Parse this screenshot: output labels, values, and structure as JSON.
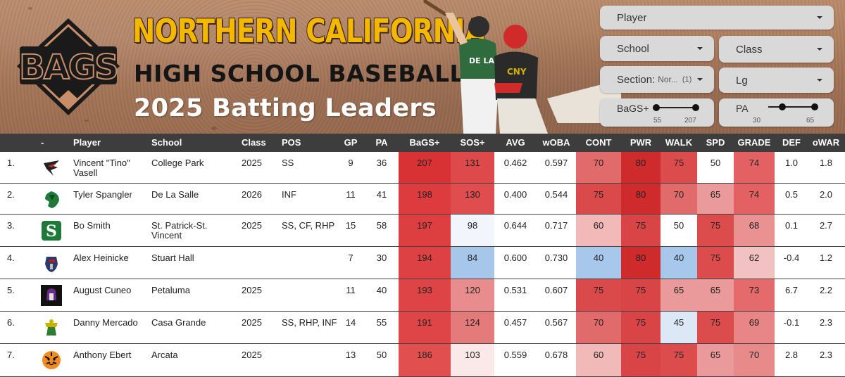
{
  "header": {
    "title_line1": "NORTHERN CALIFORNIA",
    "title_line2": "HIGH SCHOOL BASEBALL",
    "title_line3": "2025 Batting Leaders",
    "logo_text": "BAGS",
    "jersey_text_1": "DE LA SALLE",
    "jersey_text_2": "CNY"
  },
  "filters": {
    "player": {
      "label": "Player"
    },
    "school": {
      "label": "School"
    },
    "class": {
      "label": "Class"
    },
    "section": {
      "label": "Section:",
      "value": "Nor...",
      "count": "(1)"
    },
    "league": {
      "label": "Lg"
    },
    "bags_slider": {
      "label": "BaGS+",
      "min": "55",
      "max": "207",
      "low": 55,
      "high": 207
    },
    "pa_slider": {
      "label": "PA",
      "min": "30",
      "max": "65",
      "low": 30,
      "high": 65
    }
  },
  "table": {
    "columns": [
      "-",
      "Player",
      "School",
      "Class",
      "POS",
      "GP",
      "PA",
      "BaGS+",
      "SOS+",
      "AVG",
      "wOBA",
      "CONT",
      "PWR",
      "WALK",
      "SPD",
      "GRADE",
      "DEF",
      "oWAR"
    ],
    "rows": [
      {
        "rank": "1.",
        "player": "Vincent \"Tino\" Vasell",
        "school": "College Park",
        "class": "2025",
        "pos": "SS",
        "gp": "9",
        "pa": "36",
        "bags": "207",
        "sos": "131",
        "avg": "0.462",
        "woba": "0.597",
        "cont": "70",
        "pwr": "80",
        "walk": "75",
        "spd": "50",
        "grade": "74",
        "def": "1.0",
        "owar": "1.8",
        "logo": "falcon-logo"
      },
      {
        "rank": "2.",
        "player": "Tyler Spangler",
        "school": "De La Salle",
        "class": "2026",
        "pos": "INF",
        "gp": "11",
        "pa": "41",
        "bags": "198",
        "sos": "130",
        "avg": "0.400",
        "woba": "0.544",
        "cont": "75",
        "pwr": "80",
        "walk": "70",
        "spd": "65",
        "grade": "74",
        "def": "0.5",
        "owar": "2.0",
        "logo": "spartan-logo"
      },
      {
        "rank": "3.",
        "player": "Bo Smith",
        "school": "St. Patrick-St. Vincent",
        "class": "2025",
        "pos": "SS, CF, RHP",
        "gp": "15",
        "pa": "58",
        "bags": "197",
        "sos": "98",
        "avg": "0.644",
        "woba": "0.717",
        "cont": "60",
        "pwr": "75",
        "walk": "50",
        "spd": "75",
        "grade": "68",
        "def": "0.1",
        "owar": "2.7",
        "logo": "s-logo"
      },
      {
        "rank": "4.",
        "player": "Alex Heinicke",
        "school": "Stuart Hall",
        "class": "",
        "pos": "",
        "gp": "7",
        "pa": "30",
        "bags": "194",
        "sos": "84",
        "avg": "0.600",
        "woba": "0.730",
        "cont": "40",
        "pwr": "80",
        "walk": "40",
        "spd": "75",
        "grade": "62",
        "def": "-0.4",
        "owar": "1.2",
        "logo": "knight-logo"
      },
      {
        "rank": "5.",
        "player": "August Cuneo",
        "school": "Petaluma",
        "class": "2025",
        "pos": "",
        "gp": "11",
        "pa": "40",
        "bags": "193",
        "sos": "120",
        "avg": "0.531",
        "woba": "0.607",
        "cont": "75",
        "pwr": "75",
        "walk": "65",
        "spd": "65",
        "grade": "73",
        "def": "6.7",
        "owar": "2.2",
        "logo": "trojan-logo"
      },
      {
        "rank": "6.",
        "player": "Danny Mercado",
        "school": "Casa Grande",
        "class": "2025",
        "pos": "SS, RHP, INF",
        "gp": "14",
        "pa": "55",
        "bags": "191",
        "sos": "124",
        "avg": "0.457",
        "woba": "0.567",
        "cont": "70",
        "pwr": "75",
        "walk": "45",
        "spd": "75",
        "grade": "69",
        "def": "-0.1",
        "owar": "2.3",
        "logo": "gaucho-logo"
      },
      {
        "rank": "7.",
        "player": "Anthony Ebert",
        "school": "Arcata",
        "class": "2025",
        "pos": "",
        "gp": "13",
        "pa": "50",
        "bags": "186",
        "sos": "103",
        "avg": "0.559",
        "woba": "0.678",
        "cont": "60",
        "pwr": "75",
        "walk": "75",
        "spd": "65",
        "grade": "70",
        "def": "2.8",
        "owar": "2.3",
        "logo": "tiger-logo"
      }
    ],
    "heat_colors": {
      "bags": [
        "#d93234",
        "#dd3b3d",
        "#dd3e40",
        "#de4143",
        "#de4345",
        "#df4547",
        "#e1504f"
      ],
      "sos": [
        "#de4a4b",
        "#df4d4e",
        "#f2f6fc",
        "#a6c6ea",
        "#e98c8d",
        "#e57a7b",
        "#fbe9e9"
      ],
      "cont": [
        "#e16a6a",
        "#db4a4b",
        "#f2b9b9",
        "#a7c8eb",
        "#db4a4b",
        "#e16a6a",
        "#f2b9b9"
      ],
      "pwr": [
        "#cf2a2c",
        "#cf2a2c",
        "#d94546",
        "#cf2a2c",
        "#d94546",
        "#d94546",
        "#d94546"
      ],
      "walk": [
        "#dd4c4d",
        "#e16a6a",
        "#ffffff",
        "#a7c8eb",
        "#ea9a9a",
        "#dde8f6",
        "#dd4c4d"
      ],
      "spd": [
        "#ffffff",
        "#ea9a9a",
        "#dd4c4d",
        "#dd4c4d",
        "#ea9a9a",
        "#dd4c4d",
        "#ea9a9a"
      ],
      "grade": [
        "#e36163",
        "#e36163",
        "#ea9192",
        "#f2c2c3",
        "#e46a6b",
        "#e88687",
        "#e8898a"
      ]
    }
  }
}
